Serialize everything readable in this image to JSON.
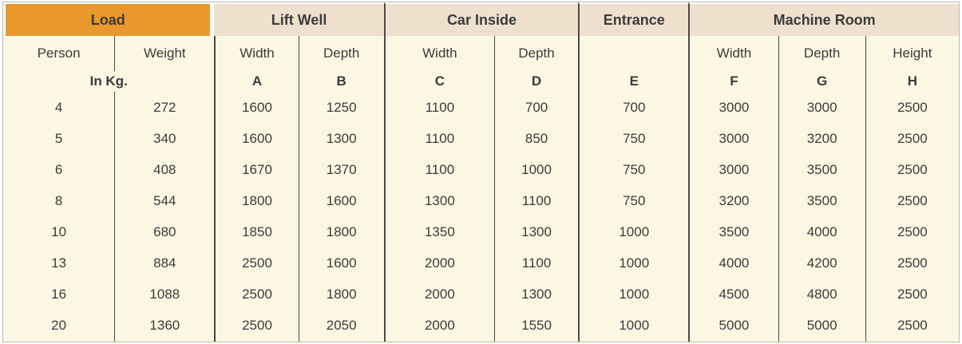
{
  "table": {
    "groups": [
      {
        "label": "Load",
        "span": 2
      },
      {
        "label": "Lift Well",
        "span": 2
      },
      {
        "label": "Car Inside",
        "span": 2
      },
      {
        "label": "Entrance",
        "span": 1
      },
      {
        "label": "Machine Room",
        "span": 3
      }
    ],
    "subheaders": [
      "Person",
      "Weight",
      "Width",
      "Depth",
      "Width",
      "Depth",
      "",
      "Width",
      "Depth",
      "Height"
    ],
    "unit_label": "In Kg.",
    "letters": [
      "A",
      "B",
      "C",
      "D",
      "E",
      "F",
      "G",
      "H"
    ],
    "rows": [
      [
        "4",
        "272",
        "1600",
        "1250",
        "1100",
        "700",
        "700",
        "3000",
        "3000",
        "2500"
      ],
      [
        "5",
        "340",
        "1600",
        "1300",
        "1100",
        "850",
        "750",
        "3000",
        "3200",
        "2500"
      ],
      [
        "6",
        "408",
        "1670",
        "1370",
        "1100",
        "1000",
        "750",
        "3000",
        "3500",
        "2500"
      ],
      [
        "8",
        "544",
        "1800",
        "1600",
        "1300",
        "1100",
        "750",
        "3200",
        "3500",
        "2500"
      ],
      [
        "10",
        "680",
        "1850",
        "1800",
        "1350",
        "1300",
        "1000",
        "3500",
        "4000",
        "2500"
      ],
      [
        "13",
        "884",
        "2500",
        "1600",
        "2000",
        "1100",
        "1000",
        "4000",
        "4200",
        "2500"
      ],
      [
        "16",
        "1088",
        "2500",
        "1800",
        "2000",
        "1300",
        "1000",
        "4500",
        "4800",
        "2500"
      ],
      [
        "20",
        "1360",
        "2500",
        "2050",
        "2000",
        "1550",
        "1000",
        "5000",
        "5000",
        "2500"
      ]
    ],
    "colors": {
      "load_header_bg": "#E8982D",
      "group_header_bg": "#EFE0CD",
      "body_bg": "#FBF7E3",
      "divider_dark": "#4A4A4C",
      "outer_border": "#B7B8BA",
      "text": "#3B3B3D"
    }
  }
}
